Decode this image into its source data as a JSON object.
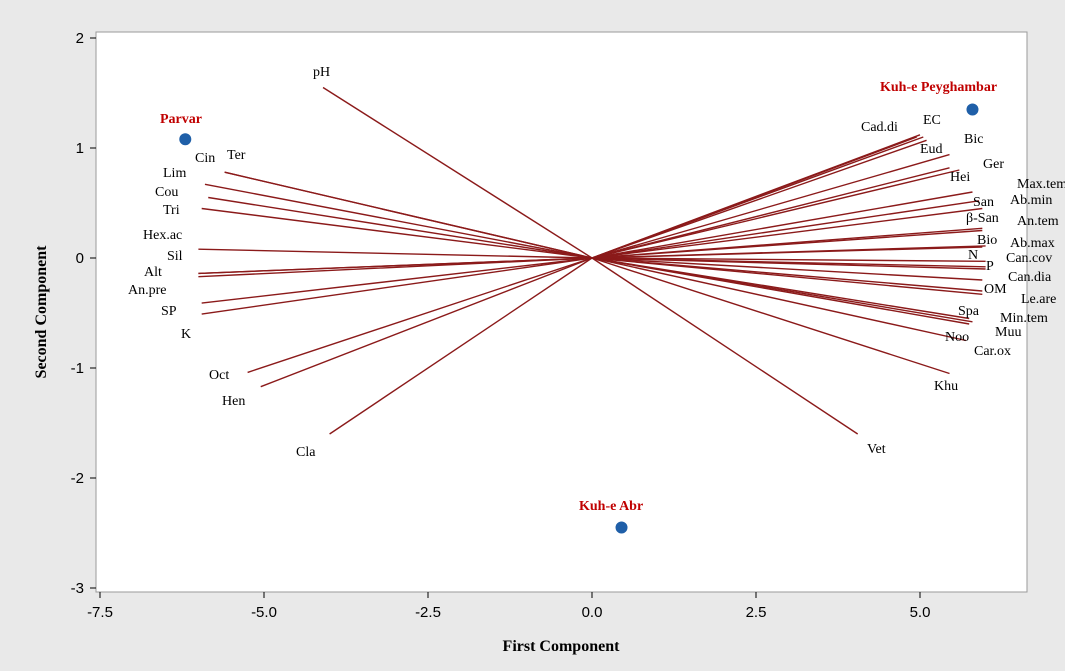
{
  "chart_data": {
    "type": "scatter",
    "subtype": "biplot",
    "title": "",
    "xlabel": "First Component",
    "ylabel": "Second Component",
    "xlim": [
      -7.7,
      6.6
    ],
    "ylim": [
      -3.05,
      2.05
    ],
    "x_ticks": [
      -7.5,
      -5.0,
      -2.5,
      0.0,
      2.5,
      5.0
    ],
    "x_tick_labels": [
      "-7.5",
      "-5.0",
      "-2.5",
      "0.0",
      "2.5",
      "5.0"
    ],
    "y_ticks": [
      -3,
      -2,
      -1,
      0,
      1,
      2
    ],
    "y_tick_labels": [
      "-3",
      "-2",
      "-1",
      "0",
      "1",
      "2"
    ],
    "grid": false,
    "colors": {
      "vector": "#8b1a1a",
      "site_point": "#1f5fa8",
      "site_label": "#c00000"
    },
    "sites": [
      {
        "name": "Parvar",
        "x": -6.2,
        "y": 1.08
      },
      {
        "name": "Kuh-e Peyghambar",
        "x": 5.8,
        "y": 1.35
      },
      {
        "name": "Kuh-e Abr",
        "x": 0.45,
        "y": -2.45
      }
    ],
    "vectors": [
      {
        "name": "pH",
        "x": -4.1,
        "y": 1.55
      },
      {
        "name": "Cin",
        "x": -5.6,
        "y": 0.78
      },
      {
        "name": "Ter",
        "x": -5.6,
        "y": 0.78
      },
      {
        "name": "Lim",
        "x": -5.9,
        "y": 0.67
      },
      {
        "name": "Cou",
        "x": -5.85,
        "y": 0.55
      },
      {
        "name": "Tri",
        "x": -5.95,
        "y": 0.45
      },
      {
        "name": "Hex.ac",
        "x": -6.0,
        "y": 0.08
      },
      {
        "name": "Sil",
        "x": -6.0,
        "y": -0.14
      },
      {
        "name": "Alt",
        "x": -6.0,
        "y": -0.17
      },
      {
        "name": "An.pre",
        "x": -5.95,
        "y": -0.41
      },
      {
        "name": "SP",
        "x": -5.95,
        "y": -0.51
      },
      {
        "name": "K",
        "x": -6.0,
        "y": -0.14
      },
      {
        "name": "Oct",
        "x": -5.25,
        "y": -1.04
      },
      {
        "name": "Hen",
        "x": -5.05,
        "y": -1.17
      },
      {
        "name": "Cla",
        "x": -4.0,
        "y": -1.6
      },
      {
        "name": "Vet",
        "x": 4.05,
        "y": -1.6
      },
      {
        "name": "Khu",
        "x": 5.45,
        "y": -1.05
      },
      {
        "name": "Car.ox",
        "x": 5.7,
        "y": -0.75
      },
      {
        "name": "Muu",
        "x": 5.75,
        "y": -0.6
      },
      {
        "name": "Noo",
        "x": 5.8,
        "y": -0.58
      },
      {
        "name": "Spa",
        "x": 5.75,
        "y": -0.55
      },
      {
        "name": "Min.tem",
        "x": 5.95,
        "y": -0.33
      },
      {
        "name": "Le.are",
        "x": 5.95,
        "y": -0.3
      },
      {
        "name": "OM",
        "x": 5.95,
        "y": -0.2
      },
      {
        "name": "Can.dia",
        "x": 6.0,
        "y": -0.1
      },
      {
        "name": "P",
        "x": 6.0,
        "y": -0.08
      },
      {
        "name": "Can.cov",
        "x": 6.0,
        "y": -0.03
      },
      {
        "name": "N",
        "x": 5.95,
        "y": 0.1
      },
      {
        "name": "Ab.max",
        "x": 6.0,
        "y": 0.11
      },
      {
        "name": "Bio",
        "x": 5.95,
        "y": 0.25
      },
      {
        "name": "β-San",
        "x": 5.95,
        "y": 0.27
      },
      {
        "name": "An.tem",
        "x": 5.95,
        "y": 0.45
      },
      {
        "name": "San",
        "x": 5.9,
        "y": 0.52
      },
      {
        "name": "Ab.min",
        "x": 5.8,
        "y": 0.6
      },
      {
        "name": "Max.tem",
        "x": 5.6,
        "y": 0.8
      },
      {
        "name": "Hei",
        "x": 5.45,
        "y": 0.82
      },
      {
        "name": "Ger",
        "x": 5.45,
        "y": 0.94
      },
      {
        "name": "Eud",
        "x": 5.1,
        "y": 1.07
      },
      {
        "name": "Bic",
        "x": 5.05,
        "y": 1.1
      },
      {
        "name": "EC",
        "x": 5.0,
        "y": 1.12
      },
      {
        "name": "Cad.di",
        "x": 4.95,
        "y": 1.1
      }
    ]
  }
}
